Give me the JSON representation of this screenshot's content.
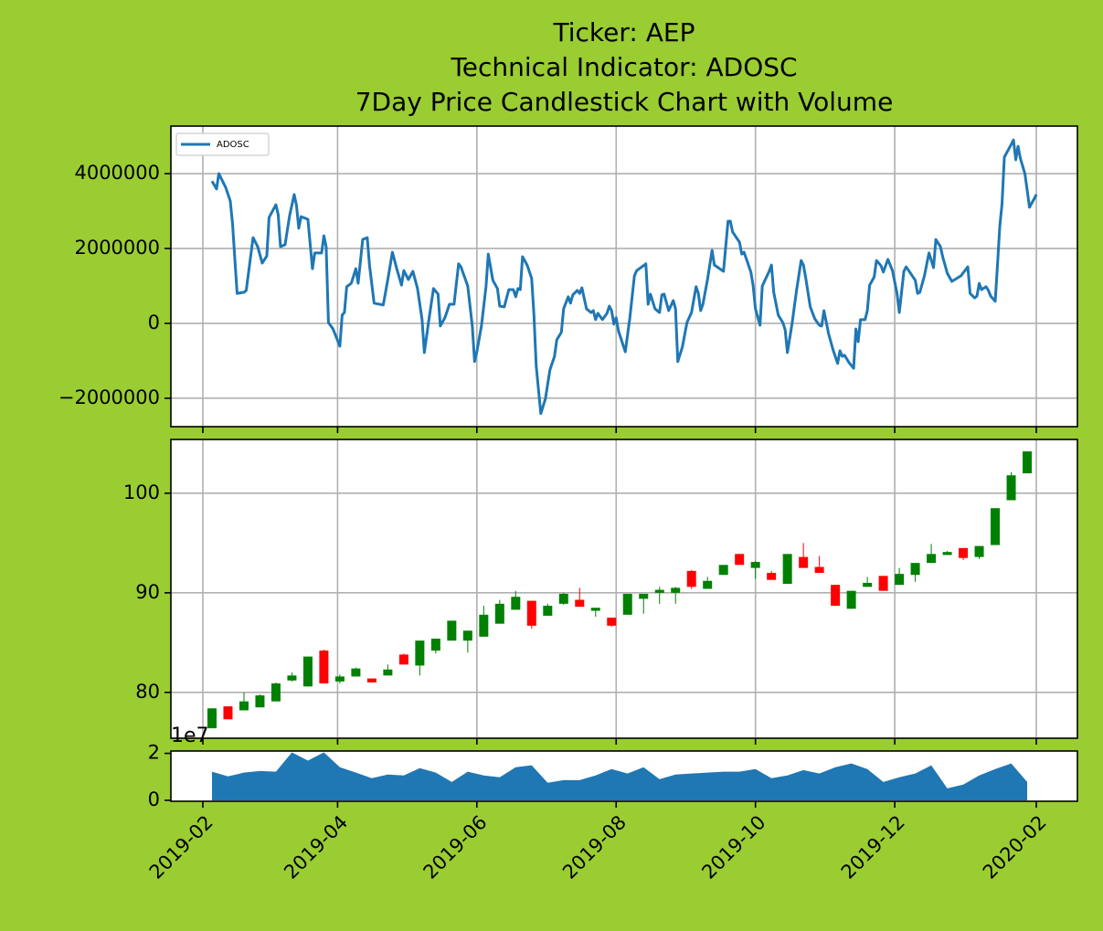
{
  "chart_data": [
    {
      "type": "line",
      "title": [
        "Ticker: AEP",
        "Technical Indicator: ADOSC",
        "7Day Price Candlestick Chart with Volume"
      ],
      "x": [
        "2019-02-05",
        "2019-02-07",
        "2019-02-08",
        "2019-02-11",
        "2019-02-13",
        "2019-02-14",
        "2019-02-16",
        "2019-02-19",
        "2019-02-20",
        "2019-02-23",
        "2019-02-25",
        "2019-02-27",
        "2019-03-01",
        "2019-03-02",
        "2019-03-05",
        "2019-03-06",
        "2019-03-07",
        "2019-03-09",
        "2019-03-11",
        "2019-03-13",
        "2019-03-14",
        "2019-03-15",
        "2019-03-16",
        "2019-03-19",
        "2019-03-21",
        "2019-03-22",
        "2019-03-25",
        "2019-03-26",
        "2019-03-27",
        "2019-03-28",
        "2019-03-30",
        "2019-04-02",
        "2019-04-03",
        "2019-04-04",
        "2019-04-05",
        "2019-04-07",
        "2019-04-09",
        "2019-04-10",
        "2019-04-12",
        "2019-04-14",
        "2019-04-15",
        "2019-04-17",
        "2019-04-21",
        "2019-04-23",
        "2019-04-25",
        "2019-04-27",
        "2019-04-29",
        "2019-04-30",
        "2019-05-02",
        "2019-05-04",
        "2019-05-06",
        "2019-05-08",
        "2019-05-09",
        "2019-05-11",
        "2019-05-13",
        "2019-05-15",
        "2019-05-16",
        "2019-05-18",
        "2019-05-20",
        "2019-05-22",
        "2019-05-24",
        "2019-05-25",
        "2019-05-28",
        "2019-05-30",
        "2019-05-31",
        "2019-06-01",
        "2019-06-03",
        "2019-06-05",
        "2019-06-06",
        "2019-06-08",
        "2019-06-10",
        "2019-06-11",
        "2019-06-13",
        "2019-06-15",
        "2019-06-17",
        "2019-06-18",
        "2019-06-19",
        "2019-06-20",
        "2019-06-21",
        "2019-06-23",
        "2019-06-25",
        "2019-06-26",
        "2019-06-27",
        "2019-06-29",
        "2019-07-01",
        "2019-07-03",
        "2019-07-05",
        "2019-07-06",
        "2019-07-08",
        "2019-07-09",
        "2019-07-11",
        "2019-07-12",
        "2019-07-13",
        "2019-07-15",
        "2019-07-16",
        "2019-07-17",
        "2019-07-19",
        "2019-07-21",
        "2019-07-22",
        "2019-07-23",
        "2019-07-24",
        "2019-07-26",
        "2019-07-28",
        "2019-07-29",
        "2019-07-30",
        "2019-07-31",
        "2019-08-01",
        "2019-08-02",
        "2019-08-05",
        "2019-08-07",
        "2019-08-09",
        "2019-08-10",
        "2019-08-14",
        "2019-08-15",
        "2019-08-16",
        "2019-08-18",
        "2019-08-20",
        "2019-08-21",
        "2019-08-22",
        "2019-08-24",
        "2019-08-26",
        "2019-08-27",
        "2019-08-28",
        "2019-08-30",
        "2019-09-01",
        "2019-09-03",
        "2019-09-05",
        "2019-09-06",
        "2019-09-07",
        "2019-09-08",
        "2019-09-10",
        "2019-09-12",
        "2019-09-13",
        "2019-09-17",
        "2019-09-19",
        "2019-09-20",
        "2019-09-21",
        "2019-09-24",
        "2019-09-25",
        "2019-09-26",
        "2019-09-29",
        "2019-09-30",
        "2019-10-01",
        "2019-10-03",
        "2019-10-04",
        "2019-10-07",
        "2019-10-08",
        "2019-10-09",
        "2019-10-11",
        "2019-10-13",
        "2019-10-14",
        "2019-10-15",
        "2019-10-17",
        "2019-10-19",
        "2019-10-21",
        "2019-10-22",
        "2019-10-23",
        "2019-10-25",
        "2019-10-27",
        "2019-10-29",
        "2019-10-30",
        "2019-10-31",
        "2019-11-02",
        "2019-11-04",
        "2019-11-06",
        "2019-11-07",
        "2019-11-08",
        "2019-11-09",
        "2019-11-11",
        "2019-11-13",
        "2019-11-14",
        "2019-11-15",
        "2019-11-16",
        "2019-11-18",
        "2019-11-19",
        "2019-11-20",
        "2019-11-22",
        "2019-11-23",
        "2019-11-25",
        "2019-11-26",
        "2019-11-28",
        "2019-11-30",
        "2019-12-02",
        "2019-12-03",
        "2019-12-05",
        "2019-12-06",
        "2019-12-10",
        "2019-12-11",
        "2019-12-12",
        "2019-12-14",
        "2019-12-16",
        "2019-12-18",
        "2019-12-19",
        "2019-12-21",
        "2019-12-22",
        "2019-12-24",
        "2019-12-26",
        "2019-12-30",
        "2020-01-02",
        "2020-01-03",
        "2020-01-05",
        "2020-01-06",
        "2020-01-07",
        "2020-01-08",
        "2020-01-10",
        "2020-01-11",
        "2020-01-12",
        "2020-01-14",
        "2020-01-15",
        "2020-01-16",
        "2020-01-17",
        "2020-01-18",
        "2020-01-21",
        "2020-01-22",
        "2020-01-23",
        "2020-01-24",
        "2020-01-25",
        "2020-01-27",
        "2020-01-28",
        "2020-01-29",
        "2020-01-31",
        "2020-02-01"
      ],
      "series": [
        {
          "name": "ADOSC",
          "color": "#1f77b4",
          "values": [
            3800000,
            3590000,
            4000000,
            3630000,
            3270000,
            2660000,
            800000,
            830000,
            880000,
            2290000,
            2050000,
            1610000,
            1800000,
            2830000,
            3170000,
            2900000,
            2050000,
            2100000,
            2880000,
            3440000,
            3150000,
            2540000,
            2850000,
            2780000,
            1460000,
            1880000,
            1880000,
            2340000,
            2050000,
            20000,
            -150000,
            -610000,
            220000,
            290000,
            980000,
            1070000,
            1460000,
            1070000,
            2240000,
            2290000,
            1540000,
            540000,
            490000,
            1170000,
            1900000,
            1440000,
            1020000,
            1410000,
            1170000,
            1390000,
            930000,
            100000,
            -780000,
            100000,
            930000,
            780000,
            -70000,
            150000,
            510000,
            510000,
            1590000,
            1510000,
            1000000,
            -70000,
            -1020000,
            -760000,
            -70000,
            980000,
            1850000,
            1150000,
            930000,
            460000,
            440000,
            900000,
            900000,
            710000,
            930000,
            900000,
            1780000,
            1560000,
            1200000,
            220000,
            -1150000,
            -2410000,
            -2020000,
            -1240000,
            -880000,
            -440000,
            -240000,
            390000,
            710000,
            540000,
            760000,
            880000,
            800000,
            950000,
            390000,
            290000,
            340000,
            100000,
            270000,
            100000,
            270000,
            460000,
            340000,
            -20000,
            150000,
            -200000,
            -760000,
            150000,
            1270000,
            1410000,
            1590000,
            510000,
            780000,
            390000,
            290000,
            760000,
            780000,
            340000,
            610000,
            390000,
            -1020000,
            -630000,
            20000,
            290000,
            980000,
            800000,
            340000,
            510000,
            1170000,
            1950000,
            1560000,
            1390000,
            2730000,
            2730000,
            2440000,
            2170000,
            1850000,
            1900000,
            1370000,
            1000000,
            390000,
            -50000,
            1000000,
            1390000,
            1560000,
            830000,
            220000,
            20000,
            -170000,
            -780000,
            -20000,
            880000,
            1680000,
            1560000,
            1220000,
            440000,
            120000,
            -50000,
            -70000,
            340000,
            -270000,
            -710000,
            -1070000,
            -730000,
            -880000,
            -850000,
            -1050000,
            -1200000,
            -150000,
            -490000,
            100000,
            100000,
            340000,
            1020000,
            1240000,
            1680000,
            1540000,
            1370000,
            1710000,
            1410000,
            800000,
            290000,
            1390000,
            1510000,
            1150000,
            800000,
            830000,
            1270000,
            1880000,
            1490000,
            2240000,
            2050000,
            1780000,
            1340000,
            1120000,
            1270000,
            1510000,
            800000,
            680000,
            730000,
            1070000,
            900000,
            980000,
            880000,
            730000,
            590000,
            1560000,
            2590000,
            3200000,
            4440000,
            4780000,
            4900000,
            4370000,
            4730000,
            4410000,
            4000000,
            3560000,
            3100000,
            3320000,
            3440000
          ]
        }
      ],
      "ylim": [
        -2760000,
        5270000
      ],
      "yticks": [
        {
          "value": -2000000,
          "label": "−2000000"
        },
        0,
        2000000,
        4000000
      ],
      "grid": true,
      "legend": "upper left"
    },
    {
      "type": "candlestick",
      "x": [
        "2019-02-05",
        "2019-02-12",
        "2019-02-19",
        "2019-02-26",
        "2019-03-05",
        "2019-03-12",
        "2019-03-19",
        "2019-03-26",
        "2019-04-02",
        "2019-04-09",
        "2019-04-16",
        "2019-04-23",
        "2019-04-30",
        "2019-05-07",
        "2019-05-14",
        "2019-05-21",
        "2019-05-28",
        "2019-06-04",
        "2019-06-11",
        "2019-06-18",
        "2019-06-25",
        "2019-07-02",
        "2019-07-09",
        "2019-07-16",
        "2019-07-23",
        "2019-07-30",
        "2019-08-06",
        "2019-08-13",
        "2019-08-20",
        "2019-08-27",
        "2019-09-03",
        "2019-09-10",
        "2019-09-17",
        "2019-09-24",
        "2019-10-01",
        "2019-10-08",
        "2019-10-15",
        "2019-10-22",
        "2019-10-29",
        "2019-11-05",
        "2019-11-12",
        "2019-11-19",
        "2019-11-26",
        "2019-12-03",
        "2019-12-10",
        "2019-12-17",
        "2019-12-24",
        "2019-12-31",
        "2020-01-07",
        "2020-01-14",
        "2020-01-21",
        "2020-01-28"
      ],
      "open": [
        76.4,
        78.6,
        78.2,
        78.5,
        79.1,
        81.2,
        80.6,
        84.2,
        81.1,
        81.6,
        81.4,
        81.7,
        83.8,
        82.7,
        84.2,
        85.2,
        85.2,
        85.6,
        86.9,
        88.3,
        89.2,
        87.7,
        88.9,
        89.3,
        88.2,
        87.5,
        87.8,
        89.4,
        90.0,
        90.0,
        92.2,
        90.4,
        91.8,
        93.9,
        92.5,
        92.0,
        90.9,
        93.6,
        92.6,
        90.8,
        88.4,
        90.6,
        91.7,
        90.8,
        91.8,
        93.0,
        93.8,
        94.5,
        93.6,
        94.8,
        99.3,
        102.0
      ],
      "high": [
        78.4,
        78.6,
        80.0,
        79.8,
        81.0,
        82.0,
        83.6,
        84.3,
        81.8,
        82.5,
        81.4,
        82.8,
        83.9,
        85.2,
        85.4,
        87.2,
        86.2,
        88.7,
        89.3,
        90.2,
        89.2,
        88.9,
        90.0,
        90.5,
        88.5,
        87.5,
        89.9,
        89.9,
        90.6,
        90.6,
        92.3,
        91.6,
        92.8,
        93.9,
        93.2,
        92.2,
        93.9,
        95.0,
        93.7,
        90.8,
        90.2,
        91.6,
        91.7,
        92.5,
        93.0,
        94.9,
        94.2,
        94.5,
        94.7,
        98.5,
        102.1,
        104.2
      ],
      "low": [
        76.4,
        77.3,
        78.2,
        78.5,
        79.1,
        81.1,
        80.6,
        80.9,
        80.9,
        81.6,
        81.0,
        81.7,
        82.8,
        81.7,
        83.9,
        85.2,
        84.0,
        85.6,
        86.9,
        88.3,
        86.4,
        87.7,
        88.8,
        88.6,
        87.6,
        86.6,
        87.8,
        87.9,
        88.9,
        88.9,
        90.4,
        90.4,
        91.8,
        92.8,
        91.4,
        91.3,
        90.9,
        92.5,
        92.0,
        88.7,
        88.4,
        90.6,
        90.2,
        90.8,
        91.1,
        93.0,
        93.8,
        93.3,
        93.4,
        94.8,
        99.3,
        102.0
      ],
      "close": [
        78.4,
        77.3,
        79.1,
        79.7,
        80.9,
        81.7,
        83.6,
        80.9,
        81.6,
        82.4,
        81.0,
        82.3,
        82.8,
        85.2,
        85.4,
        87.2,
        86.2,
        87.8,
        88.9,
        89.6,
        86.7,
        88.7,
        89.9,
        88.6,
        88.5,
        86.7,
        89.9,
        89.9,
        90.3,
        90.5,
        90.6,
        91.2,
        92.8,
        92.8,
        93.1,
        91.3,
        93.9,
        92.5,
        92.0,
        88.7,
        90.2,
        91.0,
        90.2,
        91.9,
        93.0,
        93.9,
        94.1,
        93.5,
        94.7,
        98.5,
        101.8,
        104.2
      ],
      "up_color": "green",
      "down_color": "red",
      "ylim": [
        75.4,
        105.4
      ],
      "yticks": [
        80,
        90,
        100
      ],
      "grid": true
    },
    {
      "type": "area",
      "x": [
        "2019-02-05",
        "2019-02-12",
        "2019-02-19",
        "2019-02-26",
        "2019-03-05",
        "2019-03-12",
        "2019-03-19",
        "2019-03-26",
        "2019-04-02",
        "2019-04-09",
        "2019-04-16",
        "2019-04-23",
        "2019-04-30",
        "2019-05-07",
        "2019-05-14",
        "2019-05-21",
        "2019-05-28",
        "2019-06-04",
        "2019-06-11",
        "2019-06-18",
        "2019-06-25",
        "2019-07-02",
        "2019-07-09",
        "2019-07-16",
        "2019-07-23",
        "2019-07-30",
        "2019-08-06",
        "2019-08-13",
        "2019-08-20",
        "2019-08-27",
        "2019-09-03",
        "2019-09-10",
        "2019-09-17",
        "2019-09-24",
        "2019-10-01",
        "2019-10-08",
        "2019-10-15",
        "2019-10-22",
        "2019-10-29",
        "2019-11-05",
        "2019-11-12",
        "2019-11-19",
        "2019-11-26",
        "2019-12-03",
        "2019-12-10",
        "2019-12-17",
        "2019-12-24",
        "2019-12-31",
        "2020-01-07",
        "2020-01-14",
        "2020-01-21",
        "2020-01-28"
      ],
      "values": [
        12200000,
        10200000,
        11800000,
        12500000,
        12200000,
        20400000,
        16900000,
        20400000,
        14100000,
        11800000,
        9400000,
        11000000,
        10600000,
        13700000,
        11800000,
        7800000,
        12200000,
        10600000,
        9800000,
        14100000,
        14900000,
        7500000,
        8600000,
        8600000,
        10600000,
        13300000,
        11400000,
        14100000,
        9000000,
        11000000,
        11400000,
        11800000,
        12200000,
        12200000,
        13300000,
        9400000,
        10600000,
        12900000,
        11400000,
        14100000,
        15700000,
        13300000,
        7800000,
        9800000,
        11400000,
        14900000,
        5100000,
        6700000,
        10600000,
        13300000,
        15700000,
        7800000
      ],
      "color": "#1f77b4",
      "ylim": [
        -400000,
        21000000
      ],
      "yticks": [
        0,
        {
          "value": 20000000,
          "label": "2"
        }
      ],
      "y_offset_label": "1e7",
      "xlim": [
        "2019-01-18",
        "2020-02-19"
      ],
      "xticks": [
        "2019-02",
        "2019-04",
        "2019-06",
        "2019-08",
        "2019-10",
        "2019-12",
        "2020-02"
      ],
      "grid": false
    }
  ]
}
